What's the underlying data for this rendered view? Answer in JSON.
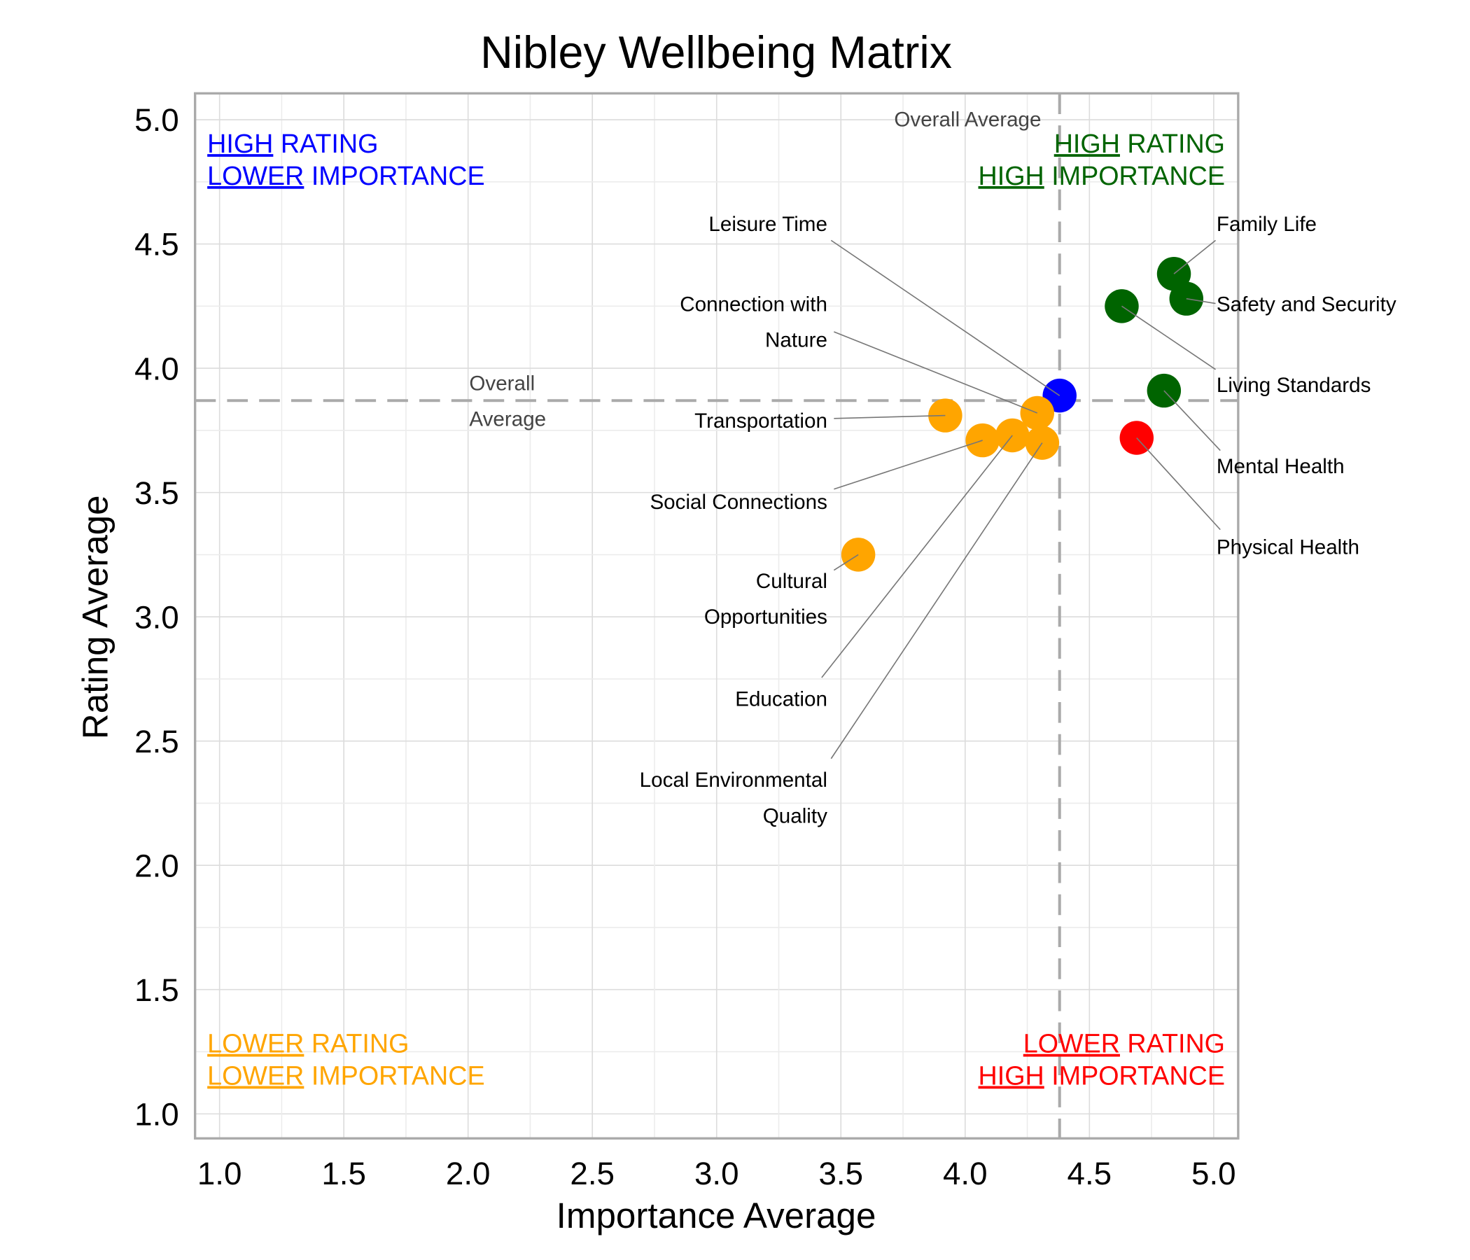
{
  "chart_data": {
    "type": "scatter",
    "title": "Nibley Wellbeing Matrix",
    "xlabel": "Importance Average",
    "ylabel": "Rating Average",
    "xlim": [
      0.9,
      5.1
    ],
    "ylim": [
      0.9,
      5.1
    ],
    "xticks": [
      "1.0",
      "1.5",
      "2.0",
      "2.5",
      "3.0",
      "3.5",
      "4.0",
      "4.5",
      "5.0"
    ],
    "yticks": [
      "1.0",
      "1.5",
      "2.0",
      "2.5",
      "3.0",
      "3.5",
      "4.0",
      "4.5",
      "5.0"
    ],
    "grid": true,
    "overall_average": {
      "x": 4.38,
      "y": 3.87,
      "x_label": "Overall Average",
      "y_label": "Overall\nAverage"
    },
    "colors": {
      "high_high": "#006400",
      "high_rating_lower_importance": "#0000ff",
      "lower_lower": "#ffa500",
      "lower_rating_high_importance": "#ff0000"
    },
    "points": [
      {
        "name": "Family Life",
        "x": 4.84,
        "y": 4.38,
        "color": "#006400"
      },
      {
        "name": "Safety and Security",
        "x": 4.89,
        "y": 4.28,
        "color": "#006400"
      },
      {
        "name": "Living Standards",
        "x": 4.63,
        "y": 4.25,
        "color": "#006400"
      },
      {
        "name": "Mental Health",
        "x": 4.8,
        "y": 3.91,
        "color": "#006400"
      },
      {
        "name": "Physical Health",
        "x": 4.69,
        "y": 3.72,
        "color": "#ff0000"
      },
      {
        "name": "Leisure Time",
        "x": 4.38,
        "y": 3.89,
        "color": "#0000ff"
      },
      {
        "name": "Connection with\nNature",
        "x": 4.29,
        "y": 3.82,
        "color": "#ffa500"
      },
      {
        "name": "Transportation",
        "x": 3.92,
        "y": 3.81,
        "color": "#ffa500"
      },
      {
        "name": "Social Connections",
        "x": 4.07,
        "y": 3.71,
        "color": "#ffa500"
      },
      {
        "name": "Education",
        "x": 4.19,
        "y": 3.73,
        "color": "#ffa500"
      },
      {
        "name": "Local Environmental\nQuality",
        "x": 4.31,
        "y": 3.7,
        "color": "#ffa500"
      },
      {
        "name": "Cultural\nOpportunities",
        "x": 3.57,
        "y": 3.25,
        "color": "#ffa500"
      }
    ],
    "quadrants": [
      {
        "id": "top-left",
        "color": "#0000ff",
        "lines": [
          [
            {
              "t": "HIGH",
              "u": true
            },
            {
              "t": " RATING",
              "u": false
            }
          ],
          [
            {
              "t": "LOWER",
              "u": true
            },
            {
              "t": " IMPORTANCE",
              "u": false
            }
          ]
        ]
      },
      {
        "id": "top-right",
        "color": "#006400",
        "lines": [
          [
            {
              "t": "HIGH",
              "u": true
            },
            {
              "t": " RATING",
              "u": false
            }
          ],
          [
            {
              "t": "HIGH",
              "u": true
            },
            {
              "t": " IMPORTANCE",
              "u": false
            }
          ]
        ]
      },
      {
        "id": "bottom-left",
        "color": "#ffa500",
        "lines": [
          [
            {
              "t": "LOWER",
              "u": true
            },
            {
              "t": " RATING",
              "u": false
            }
          ],
          [
            {
              "t": "LOWER",
              "u": true
            },
            {
              "t": " IMPORTANCE",
              "u": false
            }
          ]
        ]
      },
      {
        "id": "bottom-right",
        "color": "#ff0000",
        "lines": [
          [
            {
              "t": "LOWER",
              "u": true
            },
            {
              "t": " RATING",
              "u": false
            }
          ],
          [
            {
              "t": "HIGH",
              "u": true
            },
            {
              "t": " IMPORTANCE",
              "u": false
            }
          ]
        ]
      }
    ]
  }
}
